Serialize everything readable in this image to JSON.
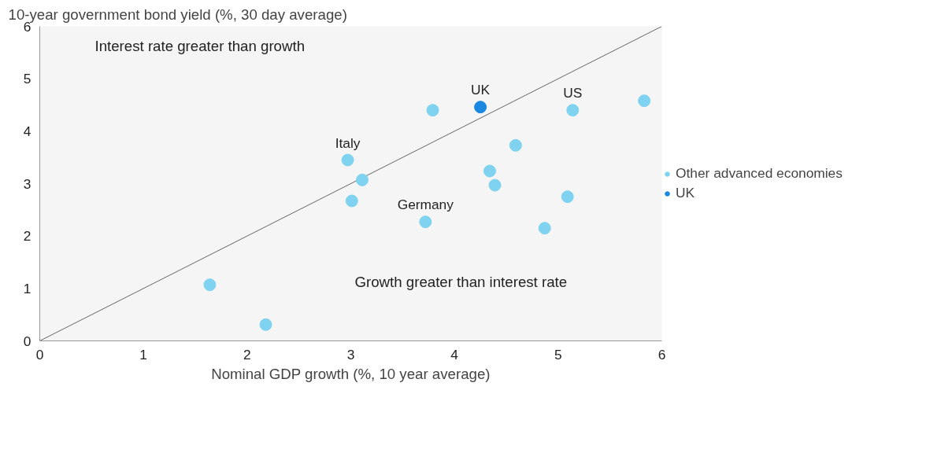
{
  "chart_data": {
    "type": "scatter",
    "xlabel": "Nominal GDP growth (%, 10 year average)",
    "ylabel": "10-year government bond yield (%, 30 day average)",
    "xlim": [
      0,
      6
    ],
    "ylim": [
      0,
      6
    ],
    "xticks": [
      0,
      1,
      2,
      3,
      4,
      5,
      6
    ],
    "yticks": [
      0,
      1,
      2,
      3,
      4,
      5,
      6
    ],
    "grid": false,
    "legend": "right",
    "marker": "circle",
    "annotations": [
      "Interest rate greater than growth",
      "Growth greater than interest rate"
    ],
    "series": [
      {
        "type": "line",
        "color": "#666666",
        "x": [
          0,
          6
        ],
        "values": [
          0,
          6
        ],
        "marker": "none"
      },
      {
        "name": "Other advanced economies",
        "color": "#7fd3f0",
        "x": [
          1.64,
          2.18,
          2.97,
          3.11,
          3.01,
          3.72,
          3.79,
          4.34,
          4.39,
          4.59,
          4.87,
          5.09,
          5.14,
          5.83
        ],
        "values": [
          1.07,
          0.31,
          3.45,
          3.07,
          2.67,
          2.27,
          4.4,
          3.24,
          2.97,
          3.73,
          2.15,
          2.75,
          4.4,
          4.58
        ],
        "value_labels": [
          null,
          null,
          "Italy",
          null,
          null,
          "Germany",
          null,
          null,
          null,
          null,
          null,
          null,
          "US",
          null
        ]
      },
      {
        "name": "UK",
        "color": "#1a87e0",
        "x": [
          4.25
        ],
        "values": [
          4.46
        ],
        "value_labels": [
          "UK"
        ]
      }
    ]
  }
}
